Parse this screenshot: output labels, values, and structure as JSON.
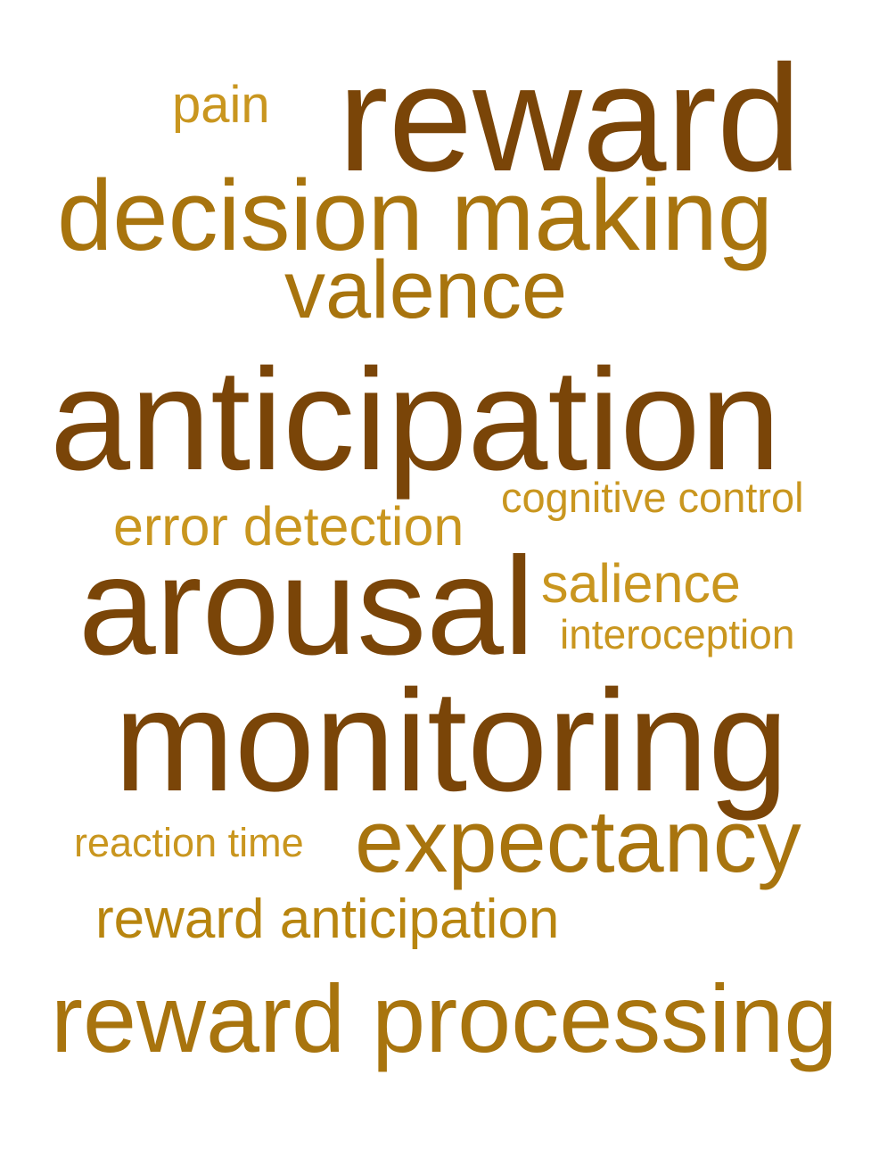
{
  "words": [
    {
      "key": "pain",
      "text": "pain",
      "color": "#C9961F"
    },
    {
      "key": "reward",
      "text": "reward",
      "color": "#7A4508"
    },
    {
      "key": "decision_making",
      "text": "decision making",
      "color": "#A8740E"
    },
    {
      "key": "valence",
      "text": "valence",
      "color": "#A8740E"
    },
    {
      "key": "anticipation",
      "text": "anticipation",
      "color": "#7A4508"
    },
    {
      "key": "cognitive_control",
      "text": "cognitive control",
      "color": "#C9961F"
    },
    {
      "key": "error_detection",
      "text": "error detection",
      "color": "#C9961F"
    },
    {
      "key": "arousal",
      "text": "arousal",
      "color": "#7A4508"
    },
    {
      "key": "salience",
      "text": "salience",
      "color": "#C9961F"
    },
    {
      "key": "interoception",
      "text": "interoception",
      "color": "#C9961F"
    },
    {
      "key": "monitoring",
      "text": "monitoring",
      "color": "#7A4508"
    },
    {
      "key": "reaction_time",
      "text": "reaction time",
      "color": "#C9961F"
    },
    {
      "key": "expectancy",
      "text": "expectancy",
      "color": "#A8740E"
    },
    {
      "key": "reward_anticipation",
      "text": "reward anticipation",
      "color": "#B8850F"
    },
    {
      "key": "reward_processing",
      "text": "reward processing",
      "color": "#A8740E"
    }
  ]
}
